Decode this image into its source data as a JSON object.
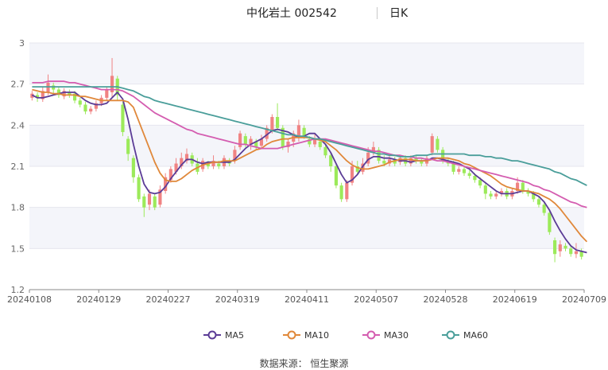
{
  "header": {
    "stock_name_code": "中化岩土 002542",
    "period": "日K"
  },
  "source_text": "数据来源：  恒生聚源",
  "colors": {
    "up_candle": "#f08383",
    "down_candle": "#9cea5a",
    "MA5": "#5b3c96",
    "MA10": "#e0883a",
    "MA30": "#d45db0",
    "MA60": "#4a9e9a",
    "grid_band": "#f4f5fa"
  },
  "chart_data": {
    "type": "candlestick",
    "ylim": [
      1.2,
      3.0
    ],
    "yticks": [
      "3",
      "2.7",
      "2.4",
      "2.1",
      "1.8",
      "1.5",
      "1.2"
    ],
    "xtick_labels": [
      "20240108",
      "20240129",
      "20240227",
      "20240319",
      "20240411",
      "20240507",
      "20240528",
      "20240619",
      "20240709"
    ],
    "legend": [
      "MA5",
      "MA10",
      "MA30",
      "MA60"
    ],
    "legend_position": "bottom",
    "candles": [
      [
        2.6,
        2.63,
        2.58,
        2.65
      ],
      [
        2.62,
        2.6,
        2.57,
        2.64
      ],
      [
        2.59,
        2.65,
        2.57,
        2.68
      ],
      [
        2.64,
        2.71,
        2.62,
        2.77
      ],
      [
        2.69,
        2.66,
        2.63,
        2.71
      ],
      [
        2.66,
        2.62,
        2.6,
        2.68
      ],
      [
        2.61,
        2.65,
        2.59,
        2.67
      ],
      [
        2.64,
        2.62,
        2.6,
        2.66
      ],
      [
        2.63,
        2.58,
        2.56,
        2.65
      ],
      [
        2.58,
        2.55,
        2.53,
        2.6
      ],
      [
        2.55,
        2.5,
        2.48,
        2.57
      ],
      [
        2.5,
        2.52,
        2.48,
        2.54
      ],
      [
        2.52,
        2.56,
        2.5,
        2.58
      ],
      [
        2.56,
        2.6,
        2.54,
        2.62
      ],
      [
        2.6,
        2.66,
        2.58,
        2.68
      ],
      [
        2.64,
        2.76,
        2.6,
        2.89
      ],
      [
        2.74,
        2.62,
        2.58,
        2.76
      ],
      [
        2.55,
        2.35,
        2.32,
        2.57
      ],
      [
        2.3,
        2.19,
        2.14,
        2.32
      ],
      [
        2.16,
        2.02,
        1.98,
        2.18
      ],
      [
        2.02,
        1.86,
        1.84,
        2.04
      ],
      [
        1.88,
        1.8,
        1.73,
        1.9
      ],
      [
        1.82,
        1.9,
        1.78,
        1.93
      ],
      [
        1.88,
        1.8,
        1.78,
        1.9
      ],
      [
        1.82,
        1.93,
        1.8,
        1.96
      ],
      [
        1.92,
        2.02,
        1.9,
        2.05
      ],
      [
        2.0,
        2.08,
        1.98,
        2.1
      ],
      [
        2.06,
        2.12,
        2.04,
        2.16
      ],
      [
        2.1,
        2.16,
        2.08,
        2.2
      ],
      [
        2.14,
        2.19,
        2.12,
        2.23
      ],
      [
        2.18,
        2.12,
        2.1,
        2.2
      ],
      [
        2.12,
        2.06,
        2.04,
        2.16
      ],
      [
        2.08,
        2.14,
        2.06,
        2.16
      ],
      [
        2.12,
        2.1,
        2.08,
        2.14
      ],
      [
        2.1,
        2.14,
        2.08,
        2.18
      ],
      [
        2.12,
        2.1,
        2.08,
        2.14
      ],
      [
        2.1,
        2.16,
        2.08,
        2.18
      ],
      [
        2.14,
        2.12,
        2.1,
        2.16
      ],
      [
        2.14,
        2.22,
        2.12,
        2.25
      ],
      [
        2.24,
        2.34,
        2.22,
        2.36
      ],
      [
        2.32,
        2.26,
        2.24,
        2.34
      ],
      [
        2.26,
        2.3,
        2.22,
        2.32
      ],
      [
        2.28,
        2.24,
        2.22,
        2.3
      ],
      [
        2.25,
        2.3,
        2.23,
        2.33
      ],
      [
        2.3,
        2.38,
        2.28,
        2.4
      ],
      [
        2.36,
        2.46,
        2.34,
        2.48
      ],
      [
        2.46,
        2.38,
        2.36,
        2.56
      ],
      [
        2.38,
        2.24,
        2.22,
        2.4
      ],
      [
        2.24,
        2.28,
        2.2,
        2.3
      ],
      [
        2.28,
        2.34,
        2.24,
        2.36
      ],
      [
        2.32,
        2.4,
        2.28,
        2.44
      ],
      [
        2.38,
        2.32,
        2.3,
        2.4
      ],
      [
        2.3,
        2.26,
        2.24,
        2.32
      ],
      [
        2.26,
        2.3,
        2.24,
        2.34
      ],
      [
        2.28,
        2.24,
        2.22,
        2.3
      ],
      [
        2.24,
        2.18,
        2.16,
        2.26
      ],
      [
        2.18,
        2.1,
        2.06,
        2.2
      ],
      [
        2.1,
        1.96,
        1.94,
        2.12
      ],
      [
        1.96,
        1.86,
        1.84,
        1.98
      ],
      [
        1.86,
        1.98,
        1.84,
        2.0
      ],
      [
        1.98,
        2.1,
        1.96,
        2.14
      ],
      [
        2.1,
        2.06,
        2.04,
        2.14
      ],
      [
        2.06,
        2.12,
        2.04,
        2.16
      ],
      [
        2.12,
        2.2,
        2.1,
        2.24
      ],
      [
        2.2,
        2.24,
        2.18,
        2.28
      ],
      [
        2.22,
        2.14,
        2.12,
        2.24
      ],
      [
        2.14,
        2.12,
        2.1,
        2.18
      ],
      [
        2.12,
        2.15,
        2.1,
        2.18
      ],
      [
        2.15,
        2.12,
        2.1,
        2.17
      ],
      [
        2.13,
        2.16,
        2.11,
        2.18
      ],
      [
        2.16,
        2.12,
        2.1,
        2.18
      ],
      [
        2.12,
        2.16,
        2.1,
        2.18
      ],
      [
        2.16,
        2.14,
        2.12,
        2.18
      ],
      [
        2.14,
        2.12,
        2.1,
        2.16
      ],
      [
        2.12,
        2.16,
        2.1,
        2.18
      ],
      [
        2.2,
        2.32,
        2.18,
        2.34
      ],
      [
        2.3,
        2.22,
        2.2,
        2.32
      ],
      [
        2.22,
        2.14,
        2.12,
        2.24
      ],
      [
        2.14,
        2.12,
        2.1,
        2.16
      ],
      [
        2.12,
        2.06,
        2.04,
        2.14
      ],
      [
        2.06,
        2.08,
        2.04,
        2.1
      ],
      [
        2.08,
        2.05,
        2.03,
        2.1
      ],
      [
        2.05,
        2.03,
        2.01,
        2.07
      ],
      [
        2.03,
        2.0,
        1.98,
        2.05
      ],
      [
        2.0,
        1.96,
        1.94,
        2.02
      ],
      [
        1.96,
        1.9,
        1.86,
        1.98
      ],
      [
        1.9,
        1.88,
        1.86,
        1.92
      ],
      [
        1.88,
        1.9,
        1.86,
        1.92
      ],
      [
        1.9,
        1.92,
        1.88,
        1.94
      ],
      [
        1.92,
        1.88,
        1.86,
        1.94
      ],
      [
        1.88,
        1.92,
        1.86,
        1.94
      ],
      [
        1.92,
        1.98,
        1.9,
        2.02
      ],
      [
        1.98,
        1.92,
        1.9,
        2.0
      ],
      [
        1.92,
        1.9,
        1.88,
        1.94
      ],
      [
        1.9,
        1.86,
        1.84,
        1.92
      ],
      [
        1.86,
        1.82,
        1.8,
        1.88
      ],
      [
        1.82,
        1.76,
        1.74,
        1.84
      ],
      [
        1.76,
        1.62,
        1.6,
        1.78
      ],
      [
        1.56,
        1.46,
        1.4,
        1.58
      ],
      [
        1.48,
        1.53,
        1.44,
        1.56
      ],
      [
        1.52,
        1.5,
        1.48,
        1.54
      ],
      [
        1.5,
        1.46,
        1.44,
        1.52
      ],
      [
        1.46,
        1.48,
        1.43,
        1.54
      ],
      [
        1.48,
        1.44,
        1.42,
        1.5
      ]
    ],
    "MA5": [
      2.62,
      2.6,
      2.6,
      2.61,
      2.62,
      2.63,
      2.64,
      2.64,
      2.64,
      2.61,
      2.58,
      2.56,
      2.55,
      2.55,
      2.56,
      2.6,
      2.64,
      2.59,
      2.44,
      2.26,
      2.1,
      1.97,
      1.91,
      1.9,
      1.91,
      1.95,
      2.01,
      2.06,
      2.11,
      2.15,
      2.15,
      2.13,
      2.12,
      2.13,
      2.13,
      2.13,
      2.13,
      2.13,
      2.15,
      2.19,
      2.23,
      2.26,
      2.28,
      2.3,
      2.33,
      2.36,
      2.37,
      2.36,
      2.35,
      2.33,
      2.31,
      2.32,
      2.34,
      2.34,
      2.3,
      2.26,
      2.2,
      2.12,
      2.04,
      1.98,
      2.0,
      2.04,
      2.1,
      2.15,
      2.17,
      2.17,
      2.16,
      2.16,
      2.15,
      2.14,
      2.14,
      2.13,
      2.14,
      2.14,
      2.14,
      2.16,
      2.16,
      2.15,
      2.14,
      2.13,
      2.12,
      2.1,
      2.08,
      2.04,
      2.01,
      1.98,
      1.95,
      1.92,
      1.9,
      1.9,
      1.9,
      1.91,
      1.92,
      1.92,
      1.9,
      1.88,
      1.84,
      1.78,
      1.7,
      1.63,
      1.57,
      1.52,
      1.49,
      1.48,
      1.47
    ],
    "MA10": [
      2.66,
      2.65,
      2.64,
      2.64,
      2.63,
      2.63,
      2.62,
      2.62,
      2.62,
      2.61,
      2.61,
      2.6,
      2.59,
      2.58,
      2.58,
      2.58,
      2.58,
      2.58,
      2.57,
      2.53,
      2.43,
      2.33,
      2.23,
      2.13,
      2.05,
      2.0,
      1.99,
      1.99,
      2.01,
      2.04,
      2.07,
      2.09,
      2.11,
      2.12,
      2.13,
      2.13,
      2.14,
      2.14,
      2.14,
      2.16,
      2.18,
      2.2,
      2.22,
      2.23,
      2.26,
      2.28,
      2.29,
      2.3,
      2.3,
      2.31,
      2.31,
      2.31,
      2.31,
      2.3,
      2.29,
      2.28,
      2.25,
      2.22,
      2.18,
      2.14,
      2.11,
      2.09,
      2.08,
      2.08,
      2.09,
      2.1,
      2.11,
      2.13,
      2.14,
      2.15,
      2.15,
      2.15,
      2.14,
      2.14,
      2.14,
      2.15,
      2.16,
      2.16,
      2.16,
      2.15,
      2.14,
      2.12,
      2.11,
      2.09,
      2.07,
      2.05,
      2.03,
      2.0,
      1.97,
      1.95,
      1.94,
      1.93,
      1.92,
      1.92,
      1.91,
      1.9,
      1.88,
      1.86,
      1.83,
      1.79,
      1.74,
      1.69,
      1.64,
      1.59,
      1.55
    ],
    "MA30": [
      2.71,
      2.71,
      2.71,
      2.72,
      2.72,
      2.72,
      2.72,
      2.71,
      2.71,
      2.7,
      2.69,
      2.68,
      2.67,
      2.66,
      2.66,
      2.66,
      2.66,
      2.65,
      2.63,
      2.61,
      2.58,
      2.55,
      2.52,
      2.49,
      2.47,
      2.45,
      2.43,
      2.41,
      2.39,
      2.37,
      2.36,
      2.34,
      2.33,
      2.32,
      2.31,
      2.3,
      2.29,
      2.28,
      2.27,
      2.26,
      2.26,
      2.25,
      2.24,
      2.23,
      2.23,
      2.23,
      2.23,
      2.24,
      2.25,
      2.26,
      2.27,
      2.28,
      2.29,
      2.3,
      2.3,
      2.3,
      2.29,
      2.28,
      2.27,
      2.26,
      2.25,
      2.24,
      2.23,
      2.22,
      2.21,
      2.21,
      2.2,
      2.19,
      2.18,
      2.18,
      2.17,
      2.17,
      2.16,
      2.16,
      2.15,
      2.15,
      2.14,
      2.14,
      2.13,
      2.12,
      2.11,
      2.1,
      2.09,
      2.08,
      2.07,
      2.06,
      2.05,
      2.04,
      2.03,
      2.02,
      2.01,
      2.0,
      1.99,
      1.98,
      1.96,
      1.95,
      1.93,
      1.92,
      1.9,
      1.88,
      1.86,
      1.84,
      1.83,
      1.81,
      1.8
    ],
    "MA60": [
      2.68,
      2.68,
      2.68,
      2.68,
      2.68,
      2.68,
      2.68,
      2.68,
      2.68,
      2.68,
      2.68,
      2.68,
      2.68,
      2.68,
      2.68,
      2.68,
      2.68,
      2.67,
      2.66,
      2.65,
      2.63,
      2.61,
      2.6,
      2.58,
      2.57,
      2.56,
      2.55,
      2.54,
      2.53,
      2.52,
      2.51,
      2.5,
      2.49,
      2.48,
      2.47,
      2.46,
      2.45,
      2.44,
      2.43,
      2.42,
      2.41,
      2.4,
      2.39,
      2.38,
      2.37,
      2.36,
      2.35,
      2.34,
      2.33,
      2.33,
      2.32,
      2.32,
      2.31,
      2.3,
      2.3,
      2.29,
      2.28,
      2.27,
      2.26,
      2.25,
      2.24,
      2.23,
      2.22,
      2.21,
      2.2,
      2.19,
      2.19,
      2.18,
      2.18,
      2.17,
      2.17,
      2.17,
      2.18,
      2.18,
      2.18,
      2.19,
      2.19,
      2.19,
      2.19,
      2.19,
      2.19,
      2.19,
      2.18,
      2.18,
      2.18,
      2.17,
      2.17,
      2.16,
      2.16,
      2.15,
      2.14,
      2.14,
      2.13,
      2.12,
      2.11,
      2.1,
      2.09,
      2.08,
      2.06,
      2.05,
      2.03,
      2.01,
      2.0,
      1.98,
      1.96
    ]
  }
}
